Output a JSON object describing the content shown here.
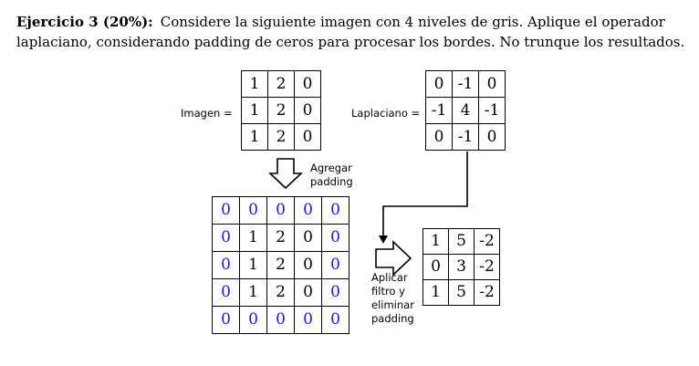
{
  "statement": {
    "heading": "Ejercicio 3 (20%):",
    "line1_text": "Considere la siguiente imagen con 4 niveles de gris. Aplique el operador",
    "line2_text": "laplaciano, considerando padding de ceros para procesar los bordes. No trunque los resultados."
  },
  "image_matrix": {
    "label": "Imagen =",
    "rows": [
      [
        "1",
        "2",
        "0"
      ],
      [
        "1",
        "2",
        "0"
      ],
      [
        "1",
        "2",
        "0"
      ]
    ]
  },
  "laplacian_matrix": {
    "label": "Laplaciano =",
    "rows": [
      [
        "0",
        "-1",
        "0"
      ],
      [
        "-1",
        "4",
        "-1"
      ],
      [
        "0",
        "-1",
        "0"
      ]
    ]
  },
  "padding_step": {
    "label_line1": "Agregar",
    "label_line2": "padding"
  },
  "padded_matrix": {
    "rows": [
      [
        "0",
        "0",
        "0",
        "0",
        "0"
      ],
      [
        "0",
        "1",
        "2",
        "0",
        "0"
      ],
      [
        "0",
        "1",
        "2",
        "0",
        "0"
      ],
      [
        "0",
        "1",
        "2",
        "0",
        "0"
      ],
      [
        "0",
        "0",
        "0",
        "0",
        "0"
      ]
    ],
    "padding_color": "#1a1adb"
  },
  "filter_step": {
    "label_line1": "Aplicar",
    "label_line2": "filtro y",
    "label_line3": "eliminar",
    "label_line4": "padding"
  },
  "result_matrix": {
    "rows": [
      [
        "1",
        "5",
        "-2"
      ],
      [
        "0",
        "3",
        "-2"
      ],
      [
        "1",
        "5",
        "-2"
      ]
    ]
  }
}
